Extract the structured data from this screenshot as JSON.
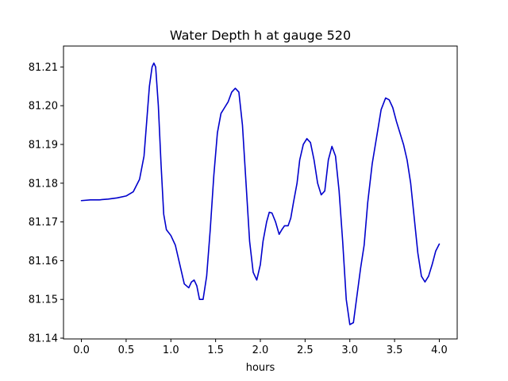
{
  "chart_data": {
    "type": "line",
    "title": "Water Depth h at gauge 520",
    "xlabel": "hours",
    "ylabel": "",
    "xlim": [
      -0.2,
      4.2
    ],
    "ylim": [
      81.1398,
      81.2154
    ],
    "x_ticks": [
      0.0,
      0.5,
      1.0,
      1.5,
      2.0,
      2.5,
      3.0,
      3.5,
      4.0
    ],
    "x_tick_labels": [
      "0.0",
      "0.5",
      "1.0",
      "1.5",
      "2.0",
      "2.5",
      "3.0",
      "3.5",
      "4.0"
    ],
    "y_ticks": [
      81.14,
      81.15,
      81.16,
      81.17,
      81.18,
      81.19,
      81.2,
      81.21
    ],
    "y_tick_labels": [
      "81.14",
      "81.15",
      "81.16",
      "81.17",
      "81.18",
      "81.19",
      "81.20",
      "81.21"
    ],
    "grid": false,
    "legend": "none",
    "series": [
      {
        "color": "#0000cc",
        "x": [
          0.0,
          0.1,
          0.2,
          0.3,
          0.4,
          0.5,
          0.58,
          0.65,
          0.7,
          0.73,
          0.76,
          0.79,
          0.81,
          0.83,
          0.86,
          0.89,
          0.92,
          0.95,
          1.0,
          1.05,
          1.1,
          1.15,
          1.2,
          1.23,
          1.26,
          1.29,
          1.32,
          1.36,
          1.4,
          1.44,
          1.48,
          1.52,
          1.56,
          1.6,
          1.64,
          1.68,
          1.72,
          1.76,
          1.8,
          1.84,
          1.88,
          1.92,
          1.96,
          2.0,
          2.03,
          2.07,
          2.1,
          2.13,
          2.17,
          2.21,
          2.24,
          2.27,
          2.31,
          2.34,
          2.37,
          2.41,
          2.44,
          2.48,
          2.52,
          2.56,
          2.6,
          2.64,
          2.68,
          2.72,
          2.76,
          2.8,
          2.84,
          2.88,
          2.92,
          2.96,
          3.0,
          3.04,
          3.08,
          3.12,
          3.16,
          3.2,
          3.25,
          3.3,
          3.35,
          3.4,
          3.44,
          3.48,
          3.52,
          3.56,
          3.6,
          3.64,
          3.68,
          3.72,
          3.76,
          3.8,
          3.84,
          3.88,
          3.92,
          3.96,
          4.0
        ],
        "y": [
          81.1755,
          81.1757,
          81.1757,
          81.1759,
          81.1762,
          81.1767,
          81.1778,
          81.181,
          81.187,
          81.196,
          81.205,
          81.21,
          81.211,
          81.21,
          81.2,
          81.185,
          81.172,
          81.168,
          81.1665,
          81.164,
          81.159,
          81.154,
          81.153,
          81.1545,
          81.155,
          81.1535,
          81.15,
          81.15,
          81.156,
          81.168,
          81.182,
          81.193,
          81.198,
          81.1995,
          81.201,
          81.2035,
          81.2045,
          81.2035,
          81.195,
          81.18,
          81.165,
          81.157,
          81.155,
          81.159,
          81.165,
          81.17,
          81.1725,
          81.1723,
          81.17,
          81.1668,
          81.168,
          81.169,
          81.169,
          81.171,
          81.175,
          81.18,
          81.186,
          81.19,
          81.1915,
          81.1905,
          81.186,
          81.18,
          81.177,
          81.178,
          81.186,
          81.1895,
          81.187,
          81.178,
          81.165,
          81.15,
          81.1435,
          81.144,
          81.151,
          81.158,
          81.164,
          81.175,
          81.185,
          81.192,
          81.199,
          81.202,
          81.2015,
          81.1995,
          81.196,
          81.193,
          81.19,
          81.186,
          81.18,
          81.171,
          81.162,
          81.156,
          81.1545,
          81.156,
          81.159,
          81.1625,
          81.1643
        ]
      }
    ]
  }
}
